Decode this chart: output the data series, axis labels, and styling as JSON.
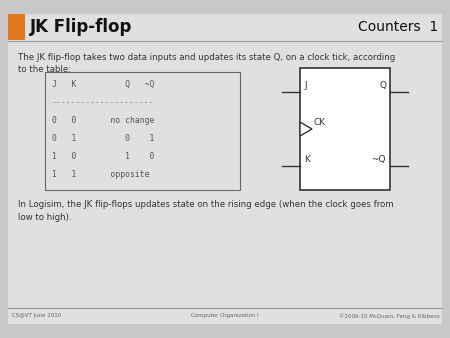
{
  "title_text": "JK Flip-flop",
  "header_right": "Counters  1",
  "bg_color": "#c8c8c8",
  "slide_bg": "#e0e0e0",
  "orange_color": "#e07820",
  "title_color": "#111111",
  "body_text1": "The JK flip-flop takes two data inputs and updates its state Q, on a clock tick, according\nto the table:",
  "body_text2": "In Logisim, the JK flip-flops updates state on the rising edge (when the clock goes from\nlow to high).",
  "footer_left": "CS@VT June 2010",
  "footer_center": "Computer Organization I",
  "footer_right": "©2006-10 McQuain, Feng & Ribbens",
  "line_color": "#999999",
  "text_color": "#333333",
  "mono_color": "#555555"
}
